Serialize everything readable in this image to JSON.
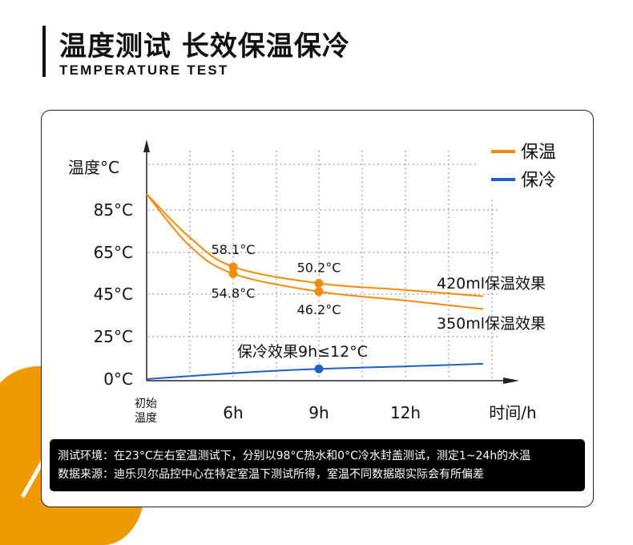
{
  "header": {
    "title": "温度测试 长效保温保冷",
    "subtitle": "TEMPERATURE TEST"
  },
  "colors": {
    "warm": "#f58a0b",
    "cold": "#1f5fc8",
    "leaf": "#ee9a00"
  },
  "chart_data": {
    "type": "line",
    "ylabel": "温度°C",
    "xlabel": "时间/h",
    "y_ticks": [
      "0°C",
      "25°C",
      "45°C",
      "65°C",
      "85°C"
    ],
    "y_tick_values": [
      0,
      25,
      45,
      65,
      85
    ],
    "x_ticks": [
      {
        "label": "初始\n温度",
        "lines": [
          "初始",
          "温度"
        ],
        "value": 0
      },
      {
        "label": "6h",
        "value": 6
      },
      {
        "label": "9h",
        "value": 9
      },
      {
        "label": "12h",
        "value": 12
      }
    ],
    "grid": true,
    "legend": {
      "placement": "top-right",
      "items": [
        {
          "name": "保温",
          "color": "#f58a0b"
        },
        {
          "name": "保冷",
          "color": "#1f5fc8"
        }
      ]
    },
    "series": [
      {
        "name": "420ml保温效果",
        "color": "#f58a0b",
        "points": [
          [
            0,
            92
          ],
          [
            3,
            72
          ],
          [
            6,
            58.1
          ],
          [
            9,
            50.2
          ],
          [
            12,
            47
          ],
          [
            24,
            44
          ]
        ],
        "markers": [
          {
            "x": 6,
            "y": 58.1,
            "label": "58.1°C"
          },
          {
            "x": 9,
            "y": 50.2,
            "label": "50.2°C"
          }
        ]
      },
      {
        "name": "350ml保温效果",
        "color": "#f58a0b",
        "points": [
          [
            0,
            92
          ],
          [
            3,
            68
          ],
          [
            6,
            54.8
          ],
          [
            9,
            46.2
          ],
          [
            12,
            42
          ],
          [
            24,
            38
          ]
        ],
        "markers": [
          {
            "x": 6,
            "y": 54.8,
            "label": "54.8°C"
          },
          {
            "x": 9,
            "y": 46.2,
            "label": "46.2°C"
          }
        ]
      },
      {
        "name": "保冷",
        "color": "#1f5fc8",
        "points": [
          [
            0,
            0
          ],
          [
            6,
            3.5
          ],
          [
            9,
            6
          ],
          [
            12,
            7.5
          ],
          [
            24,
            9
          ]
        ],
        "markers": [
          {
            "x": 9,
            "y": 6,
            "label": ""
          }
        ]
      }
    ],
    "annotation": "保冷效果9h≤12°C"
  },
  "note": {
    "line1": "测试环境：在23°C左右室温测试下，分别以98°C热水和0°C冷水封盖测试，测定1~24h的水温",
    "line2": "数据来源：迪乐贝尔品控中心在特定室温下测试所得，室温不同数据跟实际会有所偏差"
  }
}
